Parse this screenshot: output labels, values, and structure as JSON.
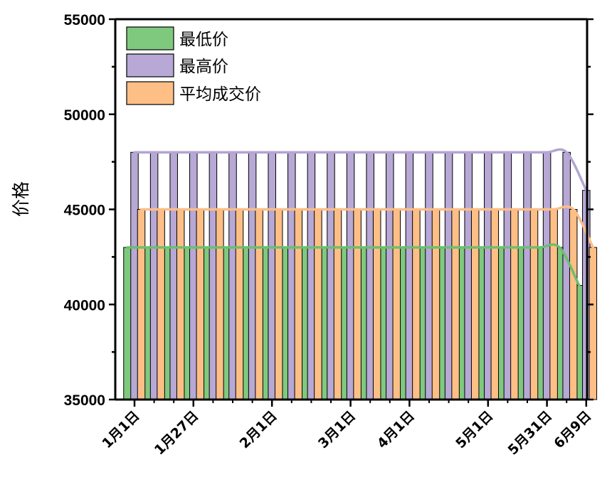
{
  "chart_data": {
    "type": "bar",
    "title": "",
    "xlabel": "",
    "ylabel": "价格",
    "ylim": [
      35000,
      55000
    ],
    "yticks": [
      35000,
      40000,
      45000,
      50000,
      55000
    ],
    "x_tick_labels": [
      "1月1日",
      "1月27日",
      "2月1日",
      "3月1日",
      "4月1日",
      "5月1日",
      "5月31日",
      "6月9日"
    ],
    "x_tick_positions": [
      0,
      3,
      7,
      11,
      14,
      18,
      21,
      23
    ],
    "grid": false,
    "legend_position": "top-left",
    "series": [
      {
        "name": "最低价",
        "color": "#7fc97f",
        "line_color": "#6cbf6c",
        "values": [
          43000,
          43000,
          43000,
          43000,
          43000,
          43000,
          43000,
          43000,
          43000,
          43000,
          43000,
          43000,
          43000,
          43000,
          43000,
          43000,
          43000,
          43000,
          43000,
          43000,
          43000,
          43000,
          43000,
          41000
        ]
      },
      {
        "name": "最高价",
        "color": "#b7a8d6",
        "line_color": "#b3a5d3",
        "values": [
          48000,
          48000,
          48000,
          48000,
          48000,
          48000,
          48000,
          48000,
          48000,
          48000,
          48000,
          48000,
          48000,
          48000,
          48000,
          48000,
          48000,
          48000,
          48000,
          48000,
          48000,
          48000,
          48000,
          46000
        ]
      },
      {
        "name": "平均成交价",
        "color": "#fdbf85",
        "line_color": "#fcbd86",
        "values": [
          45000,
          45000,
          45000,
          45000,
          45000,
          45000,
          45000,
          45000,
          45000,
          45000,
          45000,
          45000,
          45000,
          45000,
          45000,
          45000,
          45000,
          45000,
          45000,
          45000,
          45000,
          45000,
          45000,
          43000
        ]
      }
    ]
  }
}
